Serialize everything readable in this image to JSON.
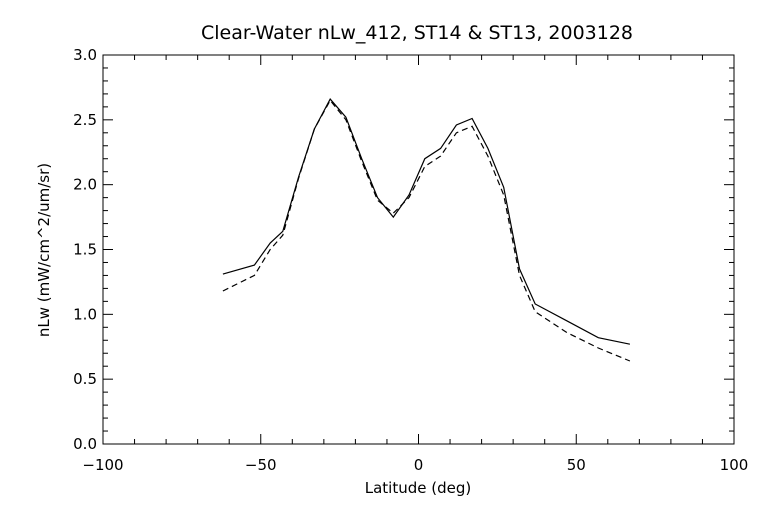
{
  "chart_data": {
    "type": "line",
    "title": "Clear-Water nLw_412, ST14 & ST13, 2003128",
    "xlabel": "Latitude (deg)",
    "ylabel": "nLw (mW/cm^2/um/sr)",
    "xlim": [
      -100,
      100
    ],
    "ylim": [
      0.0,
      3.0
    ],
    "x_ticks": [
      -100,
      -50,
      0,
      50,
      100
    ],
    "x_tick_labels": [
      "−100",
      "−50",
      "0",
      "50",
      "100"
    ],
    "y_ticks": [
      0.0,
      0.5,
      1.0,
      1.5,
      2.0,
      2.5,
      3.0
    ],
    "y_tick_labels": [
      "0.0",
      "0.5",
      "1.0",
      "1.5",
      "2.0",
      "2.5",
      "3.0"
    ],
    "grid": false,
    "series": [
      {
        "style": "solid",
        "color": "#000000",
        "points": [
          [
            -62,
            1.31
          ],
          [
            -52,
            1.38
          ],
          [
            -47,
            1.55
          ],
          [
            -43,
            1.64
          ],
          [
            -38,
            2.06
          ],
          [
            -33,
            2.43
          ],
          [
            -28,
            2.66
          ],
          [
            -23,
            2.52
          ],
          [
            -18,
            2.2
          ],
          [
            -13,
            1.9
          ],
          [
            -8,
            1.75
          ],
          [
            -3,
            1.92
          ],
          [
            2,
            2.2
          ],
          [
            7,
            2.28
          ],
          [
            12,
            2.46
          ],
          [
            17,
            2.51
          ],
          [
            22,
            2.28
          ],
          [
            27,
            1.98
          ],
          [
            32,
            1.35
          ],
          [
            37,
            1.08
          ],
          [
            47,
            0.95
          ],
          [
            57,
            0.82
          ],
          [
            67,
            0.77
          ]
        ]
      },
      {
        "style": "dashed",
        "color": "#000000",
        "points": [
          [
            -62,
            1.18
          ],
          [
            -52,
            1.3
          ],
          [
            -47,
            1.5
          ],
          [
            -43,
            1.61
          ],
          [
            -38,
            2.05
          ],
          [
            -33,
            2.43
          ],
          [
            -28,
            2.65
          ],
          [
            -23,
            2.5
          ],
          [
            -18,
            2.18
          ],
          [
            -13,
            1.88
          ],
          [
            -8,
            1.78
          ],
          [
            -3,
            1.9
          ],
          [
            2,
            2.14
          ],
          [
            7,
            2.22
          ],
          [
            12,
            2.4
          ],
          [
            17,
            2.45
          ],
          [
            22,
            2.22
          ],
          [
            27,
            1.92
          ],
          [
            32,
            1.3
          ],
          [
            37,
            1.02
          ],
          [
            47,
            0.86
          ],
          [
            57,
            0.74
          ],
          [
            67,
            0.64
          ]
        ]
      }
    ]
  }
}
